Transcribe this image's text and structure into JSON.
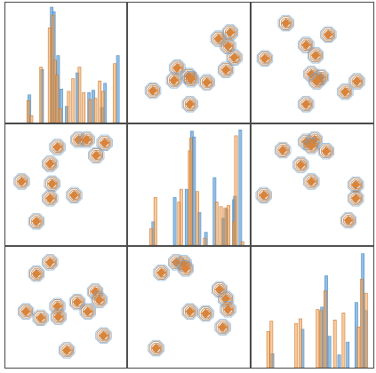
{
  "colors": {
    "series_a": "#6fa8dc",
    "series_b": "#f6a04d",
    "series_b_dark": "#d9843a",
    "contour": "#b5855b",
    "frame": "#4a4a4a",
    "background": "#ffffff"
  },
  "chart_data": {
    "type": "pairgrid",
    "title": "",
    "grid": "3x3",
    "axes_visible": false,
    "series": [
      {
        "key": "a",
        "color_key": "series_a"
      },
      {
        "key": "b",
        "color_key": "series_b"
      }
    ],
    "panels": [
      {
        "row": 0,
        "col": 0,
        "type": "histogram",
        "xlim": [
          0,
          1
        ],
        "ymax": 1,
        "a": [
          [
            0.15,
            0.24
          ],
          [
            0.27,
            0.46
          ],
          [
            0.36,
            1.0
          ],
          [
            0.38,
            0.96
          ],
          [
            0.42,
            0.58
          ],
          [
            0.45,
            0.29
          ],
          [
            0.5,
            0.14
          ],
          [
            0.6,
            0.43
          ],
          [
            0.71,
            0.26
          ],
          [
            0.75,
            0.28
          ],
          [
            0.83,
            0.13
          ],
          [
            0.86,
            0.34
          ],
          [
            0.98,
            0.58
          ]
        ],
        "b": [
          [
            0.14,
            0.19
          ],
          [
            0.17,
            0.06
          ],
          [
            0.26,
            0.48
          ],
          [
            0.34,
            0.82
          ],
          [
            0.37,
            0.93
          ],
          [
            0.39,
            0.54
          ],
          [
            0.41,
            0.41
          ],
          [
            0.44,
            0.12
          ],
          [
            0.52,
            0.27
          ],
          [
            0.56,
            0.38
          ],
          [
            0.62,
            0.48
          ],
          [
            0.66,
            0.26
          ],
          [
            0.72,
            0.2
          ],
          [
            0.77,
            0.21
          ],
          [
            0.81,
            0.36
          ],
          [
            0.84,
            0.27
          ],
          [
            0.95,
            0.51
          ]
        ]
      },
      {
        "row": 0,
        "col": 1,
        "type": "kde-scatter",
        "xlim": [
          0,
          1
        ],
        "ylim": [
          0,
          1
        ],
        "points": [
          [
            0.89,
            0.79
          ],
          [
            0.78,
            0.73
          ],
          [
            0.93,
            0.55
          ],
          [
            0.87,
            0.66
          ],
          [
            0.39,
            0.45
          ],
          [
            0.85,
            0.43
          ],
          [
            0.36,
            0.33
          ],
          [
            0.5,
            0.37
          ],
          [
            0.52,
            0.34
          ],
          [
            0.67,
            0.31
          ],
          [
            0.16,
            0.23
          ],
          [
            0.51,
            0.1
          ]
        ]
      },
      {
        "row": 0,
        "col": 2,
        "type": "kde-scatter",
        "xlim": [
          0,
          1
        ],
        "ylim": [
          0,
          1
        ],
        "points": [
          [
            0.25,
            0.88
          ],
          [
            0.65,
            0.77
          ],
          [
            0.44,
            0.67
          ],
          [
            0.53,
            0.57
          ],
          [
            0.05,
            0.54
          ],
          [
            0.49,
            0.39
          ],
          [
            0.58,
            0.36
          ],
          [
            0.54,
            0.32
          ],
          [
            0.92,
            0.32
          ],
          [
            0.81,
            0.22
          ],
          [
            0.44,
            0.1
          ]
        ]
      },
      {
        "row": 1,
        "col": 0,
        "type": "kde-scatter",
        "xlim": [
          0,
          1
        ],
        "ylim": [
          0,
          1
        ],
        "points": [
          [
            0.42,
            0.86
          ],
          [
            0.62,
            0.93
          ],
          [
            0.7,
            0.93
          ],
          [
            0.87,
            0.9
          ],
          [
            0.79,
            0.78
          ],
          [
            0.35,
            0.7
          ],
          [
            0.08,
            0.53
          ],
          [
            0.37,
            0.51
          ],
          [
            0.58,
            0.4
          ],
          [
            0.35,
            0.37
          ],
          [
            0.22,
            0.15
          ]
        ]
      },
      {
        "row": 1,
        "col": 1,
        "type": "histogram",
        "xlim": [
          0,
          1
        ],
        "ymax": 1,
        "a": [
          [
            0.16,
            0.2
          ],
          [
            0.36,
            0.41
          ],
          [
            0.47,
            0.48
          ],
          [
            0.52,
            0.98
          ],
          [
            0.54,
            0.93
          ],
          [
            0.59,
            0.28
          ],
          [
            0.65,
            0.11
          ],
          [
            0.73,
            0.58
          ],
          [
            0.81,
            0.23
          ],
          [
            0.84,
            0.31
          ],
          [
            0.91,
            0.39
          ],
          [
            0.92,
            0.42
          ],
          [
            0.97,
            0.99
          ]
        ],
        "b": [
          [
            0.14,
            0.14
          ],
          [
            0.18,
            0.41
          ],
          [
            0.4,
            0.37
          ],
          [
            0.42,
            0.48
          ],
          [
            0.5,
            0.81
          ],
          [
            0.51,
            0.92
          ],
          [
            0.57,
            0.46
          ],
          [
            0.64,
            0.06
          ],
          [
            0.75,
            0.37
          ],
          [
            0.79,
            0.33
          ],
          [
            0.83,
            0.32
          ],
          [
            0.86,
            0.34
          ],
          [
            0.91,
            0.2
          ],
          [
            0.93,
            0.94
          ],
          [
            0.99,
            0.03
          ]
        ]
      },
      {
        "row": 1,
        "col": 2,
        "type": "kde-scatter",
        "xlim": [
          0,
          1
        ],
        "ylim": [
          0,
          1
        ],
        "points": [
          [
            0.22,
            0.83
          ],
          [
            0.44,
            0.91
          ],
          [
            0.52,
            0.93
          ],
          [
            0.49,
            0.87
          ],
          [
            0.63,
            0.82
          ],
          [
            0.39,
            0.69
          ],
          [
            0.49,
            0.53
          ],
          [
            0.91,
            0.5
          ],
          [
            0.91,
            0.37
          ],
          [
            0.04,
            0.4
          ],
          [
            0.84,
            0.16
          ]
        ]
      },
      {
        "row": 2,
        "col": 0,
        "type": "kde-scatter",
        "xlim": [
          0,
          1
        ],
        "ylim": [
          0,
          1
        ],
        "points": [
          [
            0.35,
            0.93
          ],
          [
            0.22,
            0.82
          ],
          [
            0.78,
            0.65
          ],
          [
            0.42,
            0.51
          ],
          [
            0.61,
            0.55
          ],
          [
            0.82,
            0.57
          ],
          [
            0.71,
            0.46
          ],
          [
            0.12,
            0.46
          ],
          [
            0.26,
            0.4
          ],
          [
            0.43,
            0.41
          ],
          [
            0.86,
            0.23
          ],
          [
            0.51,
            0.09
          ]
        ]
      },
      {
        "row": 2,
        "col": 1,
        "type": "kde-scatter",
        "xlim": [
          0,
          1
        ],
        "ylim": [
          0,
          1
        ],
        "points": [
          [
            0.38,
            0.93
          ],
          [
            0.45,
            0.92
          ],
          [
            0.47,
            0.87
          ],
          [
            0.24,
            0.83
          ],
          [
            0.79,
            0.67
          ],
          [
            0.85,
            0.58
          ],
          [
            0.87,
            0.48
          ],
          [
            0.51,
            0.46
          ],
          [
            0.66,
            0.44
          ],
          [
            0.82,
            0.31
          ],
          [
            0.19,
            0.11
          ]
        ]
      },
      {
        "row": 2,
        "col": 2,
        "type": "histogram",
        "xlim": [
          0,
          1
        ],
        "ymax": 1,
        "a": [
          [
            0.12,
            0.12
          ],
          [
            0.4,
            0.33
          ],
          [
            0.58,
            0.52
          ],
          [
            0.62,
            0.79
          ],
          [
            0.65,
            0.27
          ],
          [
            0.74,
            0.11
          ],
          [
            0.82,
            0.22
          ],
          [
            0.9,
            0.56
          ],
          [
            0.96,
            0.98
          ],
          [
            0.99,
            0.49
          ]
        ],
        "b": [
          [
            0.08,
            0.31
          ],
          [
            0.11,
            0.4
          ],
          [
            0.34,
            0.38
          ],
          [
            0.38,
            0.42
          ],
          [
            0.54,
            0.5
          ],
          [
            0.57,
            0.49
          ],
          [
            0.61,
            0.66
          ],
          [
            0.7,
            0.41
          ],
          [
            0.78,
            0.47
          ],
          [
            0.92,
            0.35
          ],
          [
            0.95,
            0.76
          ],
          [
            0.99,
            0.64
          ]
        ]
      }
    ]
  }
}
